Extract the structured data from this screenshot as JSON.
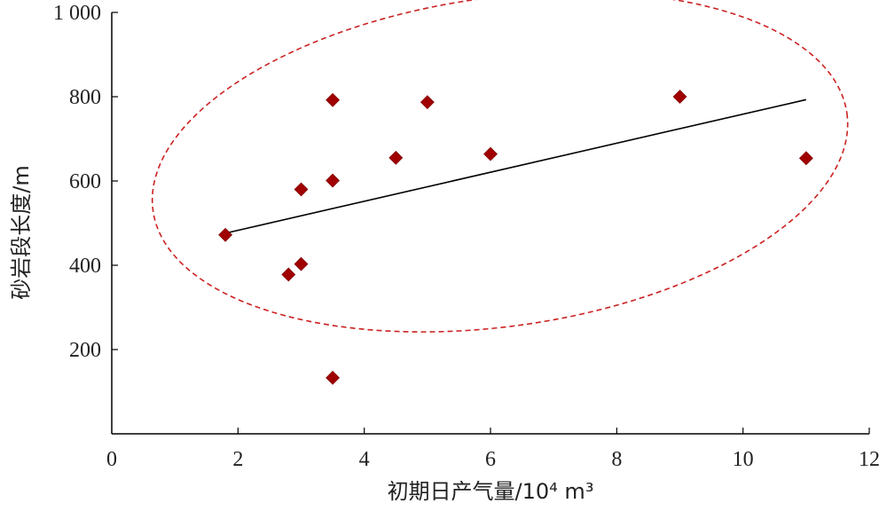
{
  "chart_data": {
    "type": "scatter",
    "title": "",
    "xlabel": "初期日产气量/10⁴ m³",
    "ylabel": "砂岩段长度/m",
    "xlim": [
      0,
      12
    ],
    "ylim": [
      0,
      1000
    ],
    "x_ticks": [
      0,
      2,
      4,
      6,
      8,
      10,
      12
    ],
    "x_tick_labels": [
      "0",
      "2",
      "4",
      "6",
      "8",
      "10",
      "12"
    ],
    "y_ticks": [
      200,
      400,
      600,
      800,
      1000
    ],
    "y_tick_labels": [
      "200",
      "400",
      "600",
      "800",
      "1 000"
    ],
    "grid": false,
    "series": [
      {
        "marker": "diamond",
        "color": "#a00000",
        "points": [
          {
            "x": 1.8,
            "y": 472
          },
          {
            "x": 2.8,
            "y": 378
          },
          {
            "x": 3.0,
            "y": 403
          },
          {
            "x": 3.0,
            "y": 580
          },
          {
            "x": 3.5,
            "y": 792
          },
          {
            "x": 3.5,
            "y": 601
          },
          {
            "x": 3.5,
            "y": 133
          },
          {
            "x": 4.5,
            "y": 655
          },
          {
            "x": 5.0,
            "y": 787
          },
          {
            "x": 6.0,
            "y": 664
          },
          {
            "x": 9.0,
            "y": 800
          },
          {
            "x": 11.0,
            "y": 654
          }
        ]
      }
    ],
    "trendline": {
      "type": "linear",
      "color": "#000000",
      "from": {
        "x": 1.8,
        "y": 476
      },
      "to": {
        "x": 11.0,
        "y": 793
      }
    },
    "annotation_ellipse": {
      "style": "dashed",
      "color": "#cc2222",
      "cx": 6.15,
      "cy": 645,
      "rx": 5.55,
      "ry": 390,
      "rotation_deg": -8
    }
  }
}
